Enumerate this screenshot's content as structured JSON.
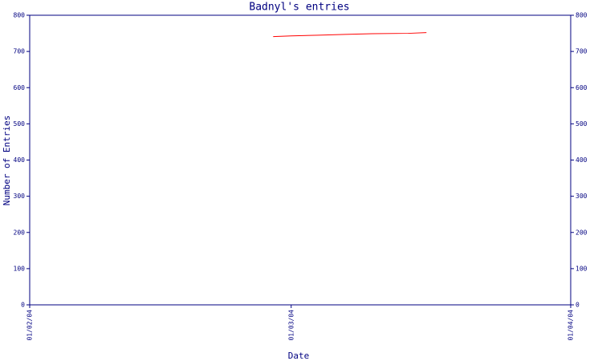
{
  "chart_data": {
    "type": "line",
    "title": "Badnyl's entries",
    "x_label": "Date",
    "y_label": "Number of Entries",
    "x": [
      "28/02/04",
      "01/03/04",
      "04/03/04",
      "07/03/04",
      "10/03/04",
      "14/03/04",
      "16/03/04"
    ],
    "series": [
      {
        "name": "Badnyl",
        "color": "#ff0000",
        "values": [
          741,
          743,
          745,
          747,
          749,
          750,
          752
        ]
      }
    ],
    "xlim": [
      "01/02/04",
      "01/04/04"
    ],
    "xticks": [
      "01/02/04",
      "01/03/04",
      "01/04/04"
    ],
    "ylim": [
      0,
      800
    ],
    "yticks": [
      0,
      100,
      200,
      300,
      400,
      500,
      600,
      700,
      800
    ],
    "y2lim": [
      0,
      800
    ],
    "y2ticks": [
      0,
      100,
      200,
      300,
      400,
      500,
      600,
      700,
      800
    ],
    "axis_color": "#000080"
  }
}
